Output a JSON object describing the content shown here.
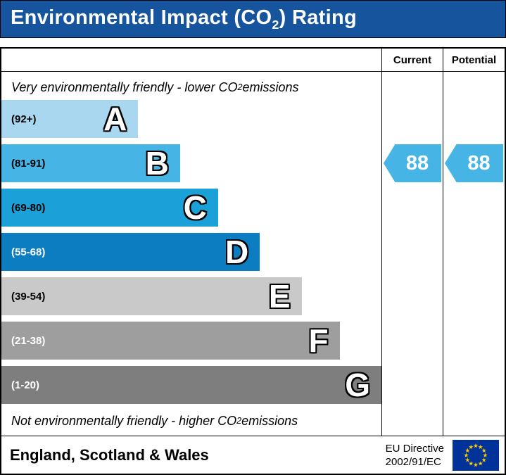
{
  "title": {
    "pre": "Environmental Impact (CO",
    "sub": "2",
    "post": ") Rating"
  },
  "columns": {
    "current": "Current",
    "potential": "Potential"
  },
  "notes": {
    "top": {
      "pre": "Very environmentally friendly - lower CO",
      "sub": "2",
      "post": " emissions"
    },
    "bottom": {
      "pre": "Not environmentally friendly - higher CO",
      "sub": "2",
      "post": " emissions"
    }
  },
  "chart_data": {
    "type": "bar",
    "title": "Environmental Impact (CO2) Rating",
    "categories": [
      "A",
      "B",
      "C",
      "D",
      "E",
      "F",
      "G"
    ],
    "bands": [
      {
        "letter": "A",
        "range": "(92+)",
        "score_range": [
          92,
          100
        ],
        "color": "#a8d7ef",
        "width_pct": 36,
        "label_color": "#000000"
      },
      {
        "letter": "B",
        "range": "(81-91)",
        "score_range": [
          81,
          91
        ],
        "color": "#46b5e5",
        "width_pct": 47,
        "label_color": "#000000"
      },
      {
        "letter": "C",
        "range": "(69-80)",
        "score_range": [
          69,
          80
        ],
        "color": "#1ba0d7",
        "width_pct": 57,
        "label_color": "#000000"
      },
      {
        "letter": "D",
        "range": "(55-68)",
        "score_range": [
          55,
          68
        ],
        "color": "#0d7dc1",
        "width_pct": 68,
        "label_color": "#ffffff"
      },
      {
        "letter": "E",
        "range": "(39-54)",
        "score_range": [
          39,
          54
        ],
        "color": "#c9c9c9",
        "width_pct": 79,
        "label_color": "#000000"
      },
      {
        "letter": "F",
        "range": "(21-38)",
        "score_range": [
          21,
          38
        ],
        "color": "#9e9e9e",
        "width_pct": 89,
        "label_color": "#ffffff"
      },
      {
        "letter": "G",
        "range": "(1-20)",
        "score_range": [
          1,
          20
        ],
        "color": "#7e7e7e",
        "width_pct": 100,
        "label_color": "#ffffff"
      }
    ],
    "current": {
      "value": 88,
      "band": "B",
      "band_index": 1,
      "arrow_color": "#46b5e5"
    },
    "potential": {
      "value": 88,
      "band": "B",
      "band_index": 1,
      "arrow_color": "#46b5e5"
    }
  },
  "footer": {
    "region": "England, Scotland & Wales",
    "directive_line1": "EU Directive",
    "directive_line2": "2002/91/EC"
  },
  "colors": {
    "title_bg": "#17549e",
    "title_text": "#ffffff",
    "border": "#000000",
    "arrow": "#46b5e5",
    "eu_flag_bg": "#003399",
    "eu_flag_star": "#ffcc00"
  }
}
